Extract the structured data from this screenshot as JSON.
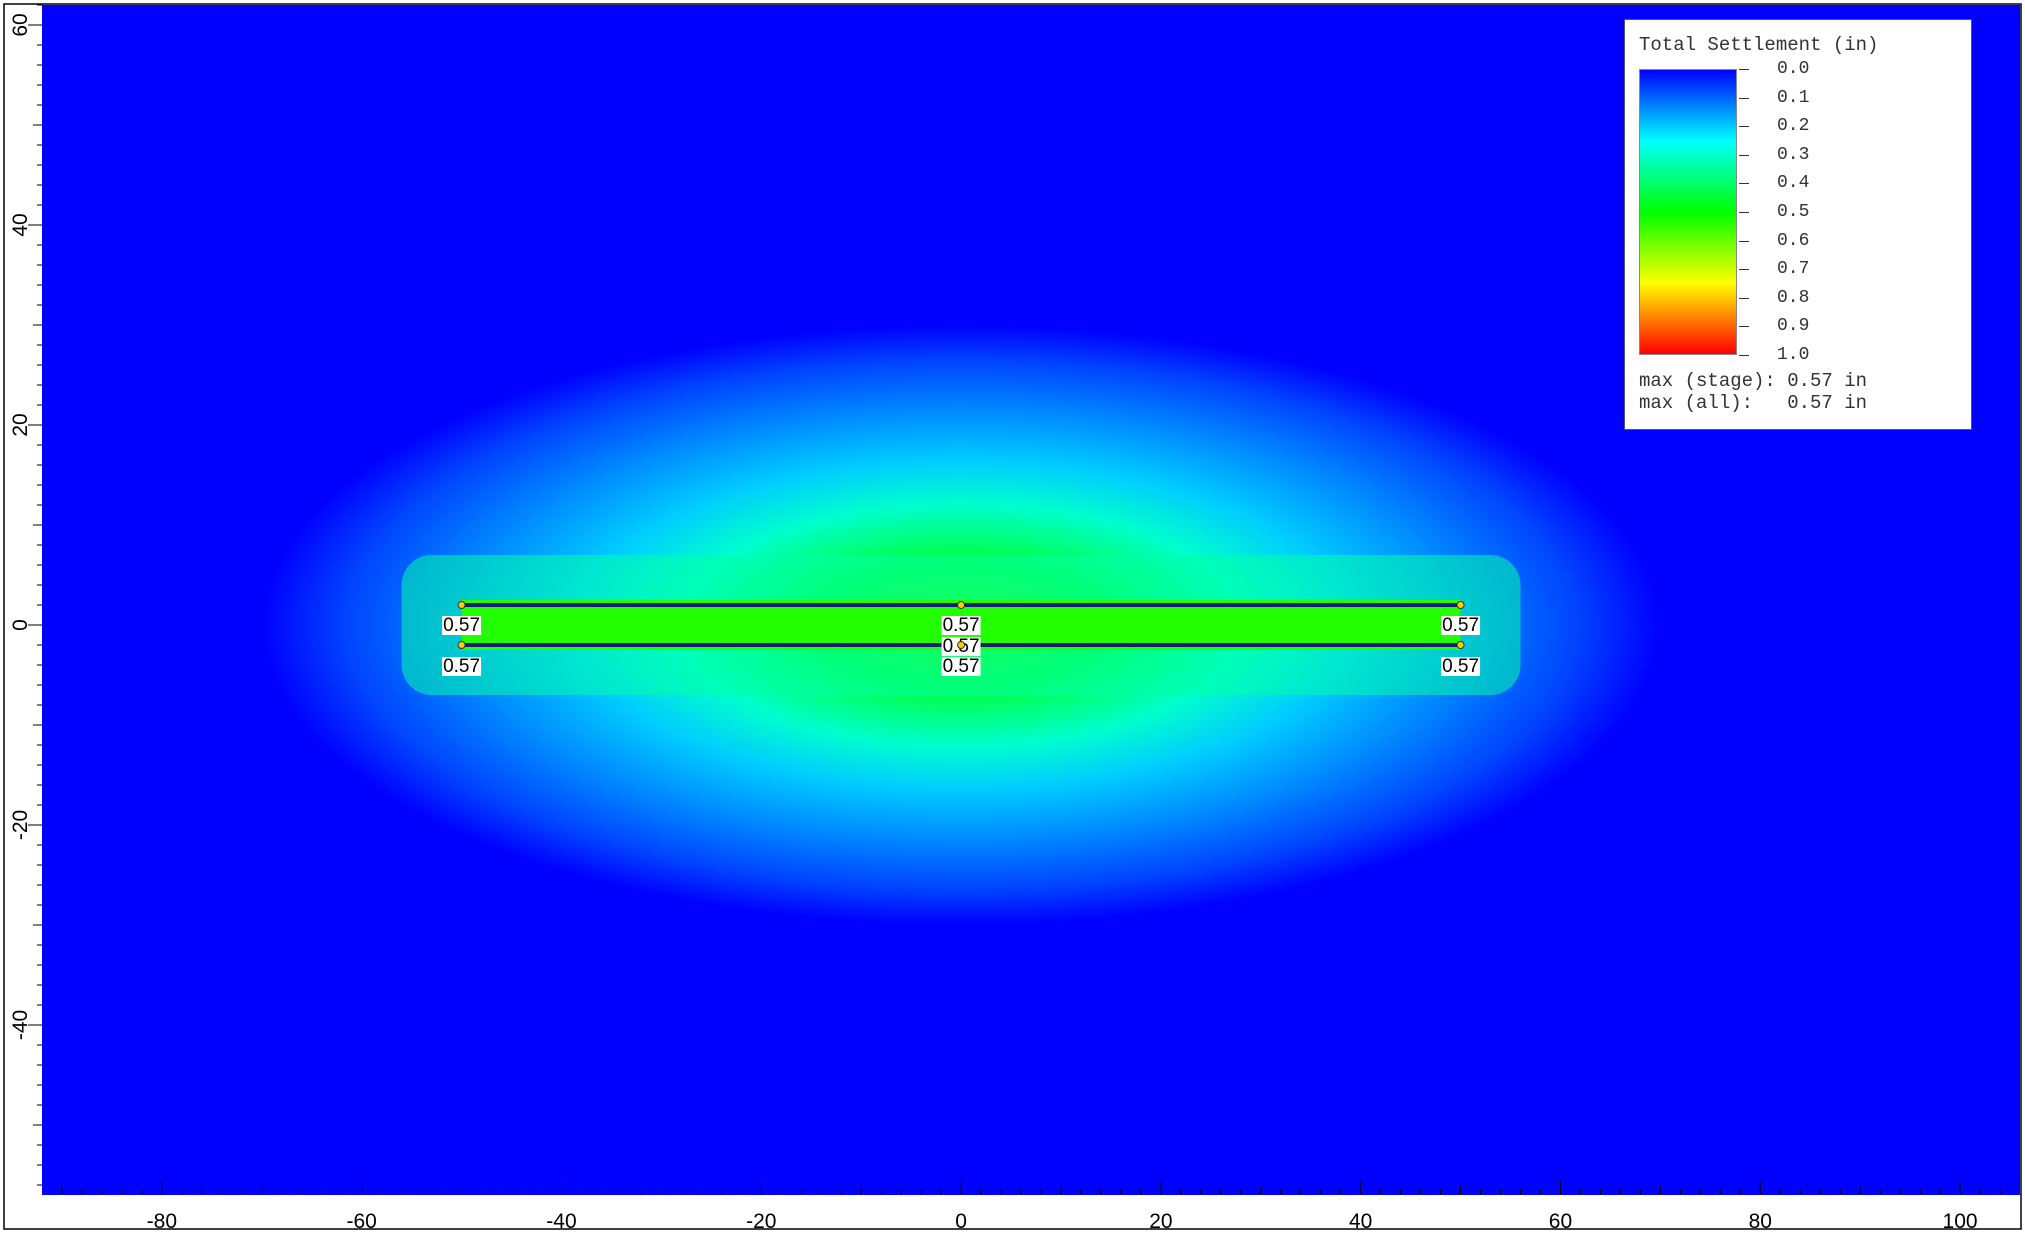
{
  "chart_data": {
    "type": "heatmap",
    "title": "",
    "xlabel": "",
    "ylabel": "",
    "xlim": [
      -92,
      106
    ],
    "ylim": [
      -57,
      62
    ],
    "x_ticks": [
      -80,
      -60,
      -40,
      -20,
      0,
      20,
      40,
      60,
      80,
      100
    ],
    "y_ticks": [
      -40,
      -20,
      0,
      20,
      40,
      60
    ],
    "grid": false,
    "colormap": [
      "#0000ff",
      "#00ffff",
      "#00ff00",
      "#ffff00",
      "#ff0000"
    ],
    "legend": {
      "title": "Total Settlement (in)",
      "position": "top-right",
      "levels": [
        "0.0",
        "0.1",
        "0.2",
        "0.3",
        "0.4",
        "0.5",
        "0.6",
        "0.7",
        "0.8",
        "0.9",
        "1.0"
      ],
      "max_stage": "max (stage): 0.57 in",
      "max_all": "max (all):   0.57 in"
    },
    "contour_region": {
      "x_min": -70,
      "x_max": 70,
      "y_min": -30,
      "y_max": 30,
      "peak_value": 0.57
    },
    "loads": [
      {
        "x1": -50,
        "x2": 50,
        "y": 2
      },
      {
        "x1": -50,
        "x2": 50,
        "y": -2
      }
    ],
    "points": [
      {
        "x": -50,
        "y": 2,
        "value": "0.57"
      },
      {
        "x": 0,
        "y": 2,
        "value": "0.57"
      },
      {
        "x": 50,
        "y": 2,
        "value": "0.57"
      },
      {
        "x": 0,
        "y": -2,
        "value": "0.57"
      },
      {
        "x": -50,
        "y": -2,
        "value": "0.57"
      },
      {
        "x": 0,
        "y": -2,
        "value": "0.57"
      },
      {
        "x": 50,
        "y": -2,
        "value": "0.57"
      }
    ]
  }
}
